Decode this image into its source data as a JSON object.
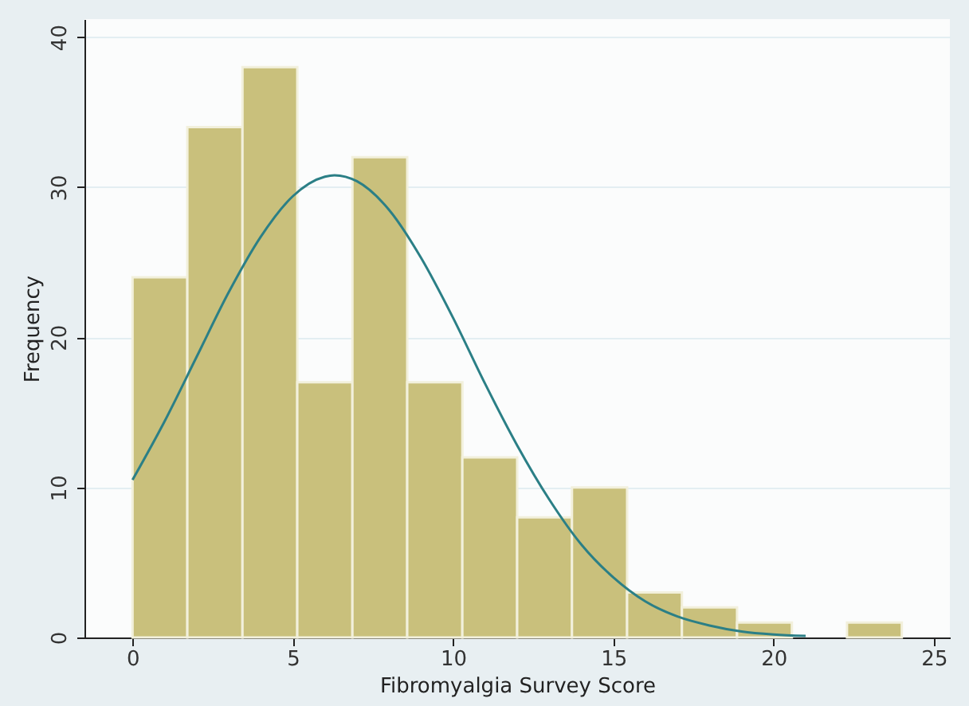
{
  "chart_data": {
    "type": "histogram",
    "xlabel": "Fibromyalgia Survey Score",
    "ylabel": "Frequency",
    "bins": [
      0,
      1.71,
      3.43,
      5.14,
      6.86,
      8.57,
      10.29,
      12,
      13.71,
      15.43,
      17.14,
      18.86,
      20.57,
      22.29,
      24
    ],
    "values": [
      24,
      34,
      38,
      17,
      32,
      17,
      12,
      8,
      10,
      3,
      2,
      1,
      0,
      1
    ],
    "color": "#c9c07c",
    "series": [
      {
        "type": "line",
        "color": "#2b7f86",
        "x": [
          0,
          1,
          2,
          3,
          4,
          5,
          6,
          6.3,
          7,
          8,
          9,
          10,
          11,
          12,
          13,
          14,
          15,
          16,
          17,
          18,
          19,
          20,
          21
        ],
        "values": [
          10.5,
          14.4,
          18.7,
          23.0,
          26.7,
          29.4,
          30.7,
          30.8,
          30.4,
          28.5,
          25.3,
          21.3,
          16.9,
          12.8,
          9.2,
          6.2,
          4.0,
          2.4,
          1.4,
          0.8,
          0.4,
          0.2,
          0.1
        ]
      }
    ],
    "xlim": [
      -1.5,
      25.5
    ],
    "xticks": [
      0,
      5,
      10,
      15,
      20,
      25
    ],
    "ylim": [
      0,
      41.2
    ],
    "yticks": [
      0,
      10,
      20,
      30,
      40
    ],
    "grid": "y"
  }
}
